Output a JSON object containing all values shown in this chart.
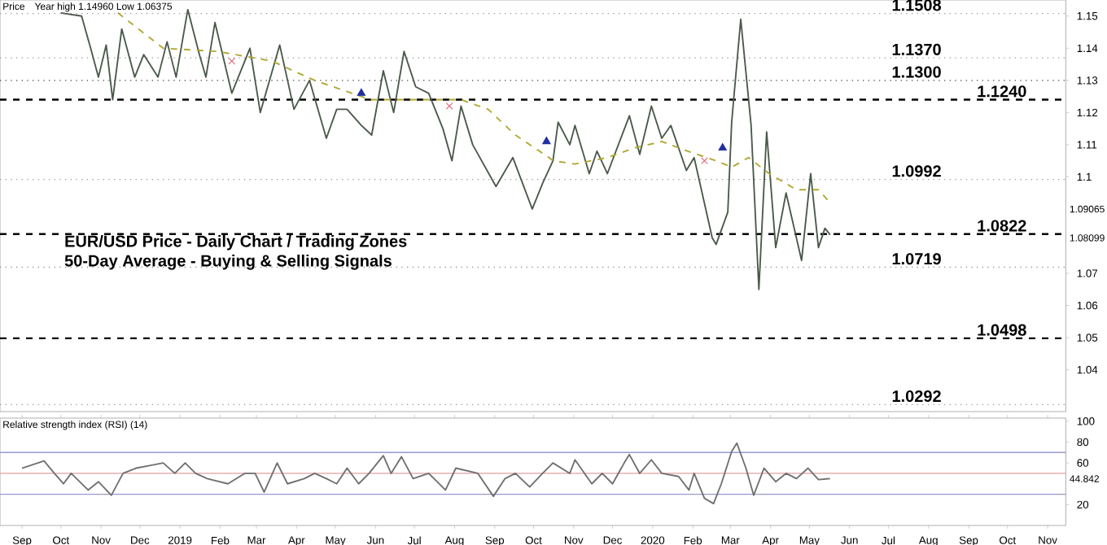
{
  "chart_data": [
    {
      "type": "line",
      "title": "EUR/USD Price - Daily Chart / Trading Zones",
      "subtitle": "50-Day Average - Buying & Selling Signals",
      "annotations": [
        "Price",
        "Year high 1.14960 Low 1.06375",
        "1.09065",
        "1.08099"
      ],
      "xlim": [
        "2018-08-15",
        "2020-11-15"
      ],
      "ylim": [
        1.027,
        1.155
      ],
      "yticks": [
        1.04,
        1.05,
        1.06,
        1.07,
        1.1,
        1.11,
        1.12,
        1.13,
        1.14,
        1.15
      ],
      "tick_labels": "y",
      "ref_lines": [
        {
          "axis": "y",
          "value": 1.1508,
          "label": "1.1508",
          "color": "#999999",
          "line_style": "dotted"
        },
        {
          "axis": "y",
          "value": 1.137,
          "label": "1.1370",
          "color": "#999999",
          "line_style": "dotted"
        },
        {
          "axis": "y",
          "value": 1.13,
          "label": "1.1300",
          "color": "#444444",
          "line_style": "dotted"
        },
        {
          "axis": "y",
          "value": 1.124,
          "label": "1.1240",
          "color": "#000000",
          "line_style": "dashed"
        },
        {
          "axis": "y",
          "value": 1.0992,
          "label": "1.0992",
          "color": "#999999",
          "line_style": "dotted"
        },
        {
          "axis": "y",
          "value": 1.0822,
          "label": "1.0822",
          "color": "#000000",
          "line_style": "dashed"
        },
        {
          "axis": "y",
          "value": 1.0719,
          "label": "1.0719",
          "color": "#999999",
          "line_style": "dotted"
        },
        {
          "axis": "y",
          "value": 1.0498,
          "label": "1.0498",
          "color": "#000000",
          "line_style": "dashed"
        },
        {
          "axis": "y",
          "value": 1.0292,
          "label": "1.0292",
          "color": "#999999",
          "line_style": "dotted"
        }
      ],
      "series": [
        {
          "color": "#4a5a4a",
          "line_style": "solid",
          "marker": "none",
          "x": [
            "2018-10-01",
            "2018-10-17",
            "2018-10-24",
            "2018-10-30",
            "2018-11-05",
            "2018-11-10",
            "2018-11-17",
            "2018-11-27",
            "2018-12-04",
            "2018-12-15",
            "2018-12-22",
            "2018-12-29",
            "2019-01-07",
            "2019-01-16",
            "2019-01-21",
            "2019-01-28",
            "2019-02-10",
            "2019-02-24",
            "2019-03-04",
            "2019-03-19",
            "2019-03-30",
            "2019-04-11",
            "2019-04-24",
            "2019-05-02",
            "2019-05-10",
            "2019-05-21",
            "2019-05-29",
            "2019-06-07",
            "2019-06-15",
            "2019-06-23",
            "2019-07-02",
            "2019-07-12",
            "2019-07-23",
            "2019-07-30",
            "2019-08-06",
            "2019-08-15",
            "2019-09-02",
            "2019-09-15",
            "2019-09-30",
            "2019-10-08",
            "2019-10-16",
            "2019-10-20",
            "2019-10-29",
            "2019-11-02",
            "2019-11-13",
            "2019-11-19",
            "2019-11-27",
            "2019-12-14",
            "2019-12-22",
            "2019-12-31",
            "2020-01-08",
            "2020-01-15",
            "2020-01-27",
            "2020-02-02",
            "2020-02-16",
            "2020-02-19",
            "2020-02-28",
            "2020-03-02",
            "2020-03-09",
            "2020-03-17",
            "2020-03-23",
            "2020-03-29",
            "2020-04-05",
            "2020-04-13",
            "2020-04-25",
            "2020-05-02",
            "2020-05-08",
            "2020-05-13",
            "2020-05-17"
          ],
          "values": [
            1.151,
            1.15,
            1.14,
            1.131,
            1.141,
            1.124,
            1.146,
            1.131,
            1.138,
            1.131,
            1.142,
            1.131,
            1.152,
            1.138,
            1.131,
            1.148,
            1.126,
            1.14,
            1.12,
            1.141,
            1.121,
            1.13,
            1.112,
            1.121,
            1.121,
            1.116,
            1.113,
            1.133,
            1.12,
            1.139,
            1.128,
            1.126,
            1.115,
            1.105,
            1.122,
            1.11,
            1.097,
            1.106,
            1.09,
            1.098,
            1.105,
            1.117,
            1.11,
            1.116,
            1.101,
            1.108,
            1.101,
            1.119,
            1.107,
            1.122,
            1.112,
            1.116,
            1.102,
            1.106,
            1.081,
            1.079,
            1.089,
            1.117,
            1.149,
            1.116,
            1.065,
            1.114,
            1.078,
            1.095,
            1.074,
            1.101,
            1.078,
            1.084,
            1.082
          ]
        },
        {
          "color": "#b0a830",
          "line_style": "dashed",
          "marker": "none",
          "x": [
            "2018-11-14",
            "2018-12-19",
            "2019-01-30",
            "2019-03-13",
            "2019-04-15",
            "2019-05-28",
            "2019-06-29",
            "2019-08-06",
            "2019-08-27",
            "2019-09-17",
            "2019-10-13",
            "2019-10-16",
            "2019-11-02",
            "2019-11-27",
            "2019-12-18",
            "2020-01-08",
            "2020-01-28",
            "2020-02-19",
            "2020-03-02",
            "2020-03-15",
            "2020-03-31",
            "2020-04-21",
            "2020-05-08",
            "2020-05-17"
          ],
          "values": [
            1.151,
            1.14,
            1.139,
            1.136,
            1.13,
            1.124,
            1.124,
            1.124,
            1.121,
            1.113,
            1.106,
            1.105,
            1.104,
            1.106,
            1.109,
            1.111,
            1.108,
            1.105,
            1.103,
            1.106,
            1.101,
            1.096,
            1.096,
            1.092
          ]
        },
        {
          "type": "scatter",
          "color": "#1f2fa0",
          "marker": "triangle",
          "x": [
            "2019-05-21",
            "2019-10-11",
            "2020-02-24"
          ],
          "values": [
            1.126,
            1.111,
            1.109
          ]
        },
        {
          "type": "scatter",
          "color": "#e06070",
          "marker": "cross",
          "x": [
            "2019-02-10",
            "2019-07-28",
            "2020-02-10"
          ],
          "values": [
            1.136,
            1.122,
            1.105
          ]
        }
      ]
    },
    {
      "type": "line",
      "title": "Relative strength index (RSI) (14)",
      "annotations": [
        "44.842"
      ],
      "xlim": [
        "2018-08-15",
        "2020-11-15"
      ],
      "ylim": [
        0,
        103
      ],
      "yticks": [
        20,
        60,
        80,
        100
      ],
      "xticks": [
        {
          "value": "2018-09-01",
          "label": "Sep"
        },
        {
          "value": "2018-10-01",
          "label": "Oct"
        },
        {
          "value": "2018-11-01",
          "label": "Nov"
        },
        {
          "value": "2018-12-01",
          "label": "Dec"
        },
        {
          "value": "2019-01-01",
          "label": "2019"
        },
        {
          "value": "2019-02-01",
          "label": "Feb"
        },
        {
          "value": "2019-03-01",
          "label": "Mar"
        },
        {
          "value": "2019-04-01",
          "label": "Apr"
        },
        {
          "value": "2019-05-01",
          "label": "May"
        },
        {
          "value": "2019-06-01",
          "label": "Jun"
        },
        {
          "value": "2019-07-01",
          "label": "Jul"
        },
        {
          "value": "2019-08-01",
          "label": "Aug"
        },
        {
          "value": "2019-09-01",
          "label": "Sep"
        },
        {
          "value": "2019-10-01",
          "label": "Oct"
        },
        {
          "value": "2019-11-01",
          "label": "Nov"
        },
        {
          "value": "2019-12-01",
          "label": "Dec"
        },
        {
          "value": "2020-01-01",
          "label": "2020"
        },
        {
          "value": "2020-02-01",
          "label": "Feb"
        },
        {
          "value": "2020-03-01",
          "label": "Mar"
        },
        {
          "value": "2020-04-01",
          "label": "Apr"
        },
        {
          "value": "2020-05-01",
          "label": "May"
        },
        {
          "value": "2020-06-01",
          "label": "Jun"
        },
        {
          "value": "2020-07-01",
          "label": "Jul"
        },
        {
          "value": "2020-08-01",
          "label": "Aug"
        },
        {
          "value": "2020-09-01",
          "label": "Sep"
        },
        {
          "value": "2020-10-01",
          "label": "Oct"
        },
        {
          "value": "2020-11-01",
          "label": "Nov"
        }
      ],
      "ref_lines": [
        {
          "axis": "y",
          "value": 70,
          "color": "#9999cc",
          "line_style": "solid"
        },
        {
          "axis": "y",
          "value": 50,
          "color": "#e0a0a0",
          "line_style": "solid"
        },
        {
          "axis": "y",
          "value": 30,
          "color": "#9999cc",
          "line_style": "solid"
        }
      ],
      "series": [
        {
          "color": "#707070",
          "line_style": "solid",
          "marker": "none",
          "x": [
            "2018-09-01",
            "2018-09-18",
            "2018-09-26",
            "2018-10-03",
            "2018-10-09",
            "2018-10-22",
            "2018-10-30",
            "2018-11-09",
            "2018-11-18",
            "2018-11-28",
            "2018-12-11",
            "2018-12-19",
            "2018-12-28",
            "2019-01-05",
            "2019-01-13",
            "2019-01-22",
            "2019-02-07",
            "2019-02-20",
            "2019-02-28",
            "2019-03-07",
            "2019-03-17",
            "2019-03-25",
            "2019-04-07",
            "2019-04-15",
            "2019-04-24",
            "2019-05-02",
            "2019-05-10",
            "2019-05-19",
            "2019-05-27",
            "2019-06-07",
            "2019-06-13",
            "2019-06-21",
            "2019-06-30",
            "2019-07-12",
            "2019-07-25",
            "2019-08-02",
            "2019-08-19",
            "2019-08-31",
            "2019-09-09",
            "2019-09-17",
            "2019-09-28",
            "2019-10-08",
            "2019-10-16",
            "2019-10-29",
            "2019-11-02",
            "2019-11-15",
            "2019-11-23",
            "2019-12-01",
            "2019-12-10",
            "2019-12-14",
            "2019-12-22",
            "2019-12-31",
            "2020-01-08",
            "2020-01-21",
            "2020-01-29",
            "2020-02-02",
            "2020-02-10",
            "2020-02-17",
            "2020-02-23",
            "2020-03-02",
            "2020-03-06",
            "2020-03-13",
            "2020-03-19",
            "2020-03-27",
            "2020-04-05",
            "2020-04-13",
            "2020-04-21",
            "2020-04-30",
            "2020-05-08",
            "2020-05-17"
          ],
          "values": [
            55,
            62,
            50,
            40,
            50,
            34,
            42,
            29,
            50,
            55,
            58,
            60,
            50,
            60,
            50,
            45,
            40,
            50,
            50,
            32,
            60,
            40,
            45,
            50,
            45,
            40,
            55,
            40,
            50,
            67,
            50,
            66,
            45,
            50,
            34,
            55,
            50,
            28,
            45,
            50,
            37,
            50,
            60,
            50,
            63,
            40,
            50,
            40,
            60,
            68,
            50,
            63,
            50,
            47,
            34,
            50,
            26,
            21,
            40,
            71,
            79,
            55,
            29,
            55,
            42,
            50,
            45,
            55,
            44,
            45
          ]
        }
      ]
    }
  ]
}
